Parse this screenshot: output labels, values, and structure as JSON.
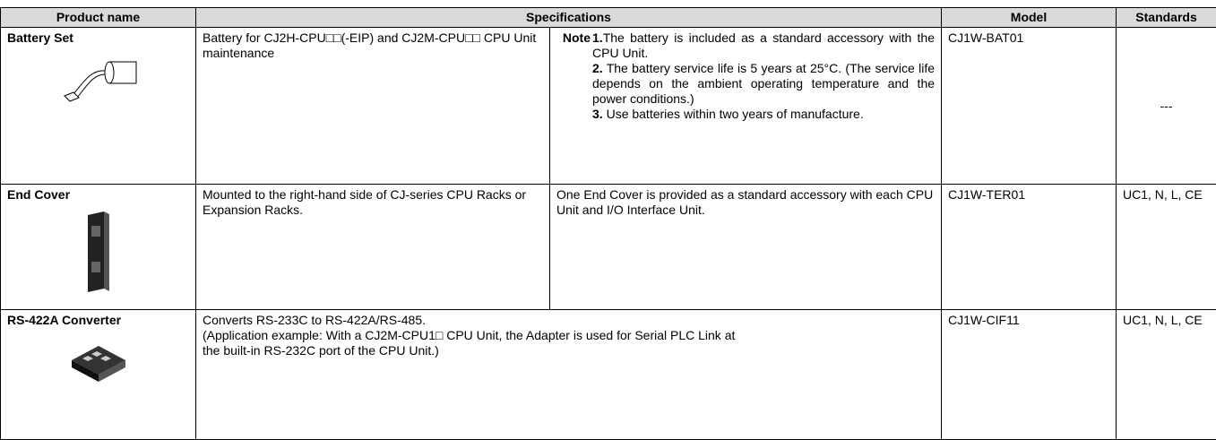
{
  "table": {
    "header": [
      "Product name",
      "Specifications",
      "Model",
      "Standards"
    ],
    "note_label": "Note",
    "rows": [
      {
        "product": "Battery Set",
        "spec": "Battery for CJ2H-CPU□□(-EIP) and CJ2M-CPU□□ CPU Unit maintenance",
        "notes": [
          {
            "number": "1.",
            "text": "The battery is included as a standard accessory with the CPU Unit."
          },
          {
            "number": "2.",
            "text": "The battery service life is 5 years at 25°C. (The service life depends on the ambient operating temperature and the power conditions.)"
          },
          {
            "number": "3.",
            "text": "Use batteries within two years of manufacture."
          }
        ],
        "model": "CJ1W-BAT01",
        "standards": "---"
      },
      {
        "product": "End Cover",
        "spec": "Mounted to the right-hand side of CJ-series CPU Racks or Expansion Racks.",
        "spec_detail": "One End Cover is provided as a standard accessory with each CPU Unit and I/O Interface Unit.",
        "model": "CJ1W-TER01",
        "standards": "UC1, N, L, CE"
      },
      {
        "product": "RS-422A Converter",
        "spec": "Converts RS-233C to RS-422A/RS-485.",
        "spec_detail": "(Application example: With a CJ2M-CPU1□ CPU Unit, the Adapter is used for Serial PLC Link at the built-in RS-232C port of the CPU Unit.)",
        "model": "CJ1W-CIF11",
        "standards": "UC1, N, L, CE"
      }
    ]
  }
}
